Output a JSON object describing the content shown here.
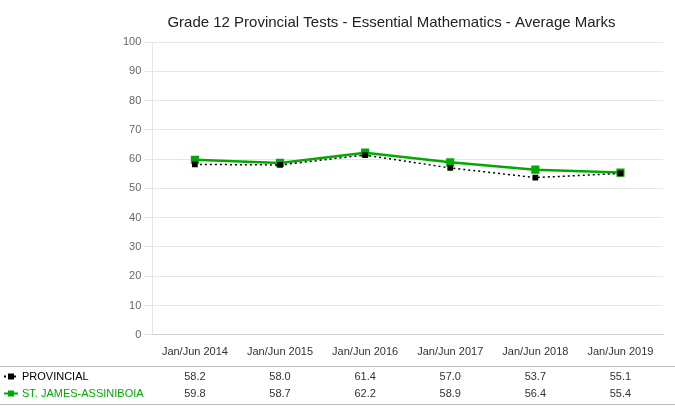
{
  "chart_data": {
    "type": "line",
    "title": "Grade 12 Provincial Tests - Essential Mathematics - Average Marks",
    "categories": [
      "Jan/Jun 2014",
      "Jan/Jun 2015",
      "Jan/Jun 2016",
      "Jan/Jun 2017",
      "Jan/Jun 2018",
      "Jan/Jun 2019"
    ],
    "series": [
      {
        "name": "PROVINCIAL",
        "color": "#000000",
        "line_style": "dotted",
        "marker": "square",
        "values": [
          58.2,
          58.0,
          61.4,
          57.0,
          53.7,
          55.1
        ],
        "value_labels": [
          "58.2",
          "58.0",
          "61.4",
          "57.0",
          "53.7",
          "55.1"
        ]
      },
      {
        "name": "ST. JAMES-ASSINIBOIA",
        "color": "#00AA00",
        "line_style": "solid",
        "marker": "square",
        "values": [
          59.8,
          58.7,
          62.2,
          58.9,
          56.4,
          55.4
        ],
        "value_labels": [
          "59.8",
          "58.7",
          "62.2",
          "58.9",
          "56.4",
          "55.4"
        ]
      }
    ],
    "ylim": [
      0,
      100
    ],
    "yticks": [
      0,
      10,
      20,
      30,
      40,
      50,
      60,
      70,
      80,
      90,
      100
    ],
    "grid": true
  }
}
